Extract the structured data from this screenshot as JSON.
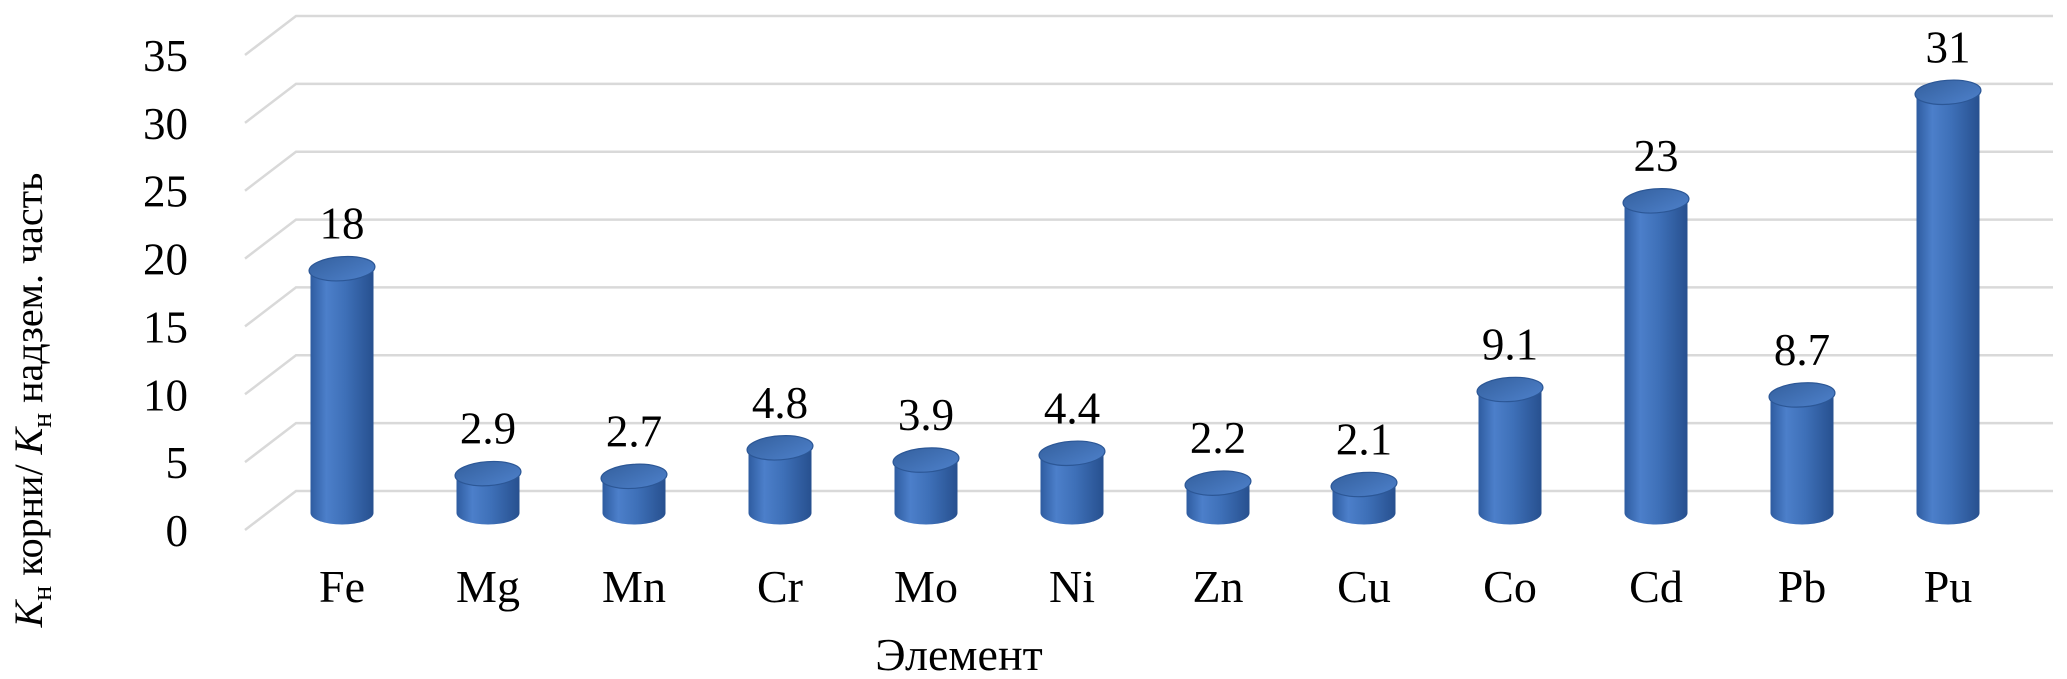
{
  "page": {
    "background": "#FFFFFF"
  },
  "chart_data": {
    "type": "bar",
    "subtype": "3d-cylinder",
    "title": "",
    "xlabel": "Элемент",
    "ylabel": "Кн корни/ Кн надзем. часть",
    "ylabel_rich": [
      {
        "text": "К",
        "style": "italic"
      },
      {
        "text": "н",
        "style": "sub"
      },
      {
        "text": " корни/ ",
        "style": "normal"
      },
      {
        "text": "К",
        "style": "italic"
      },
      {
        "text": "н",
        "style": "sub"
      },
      {
        "text": " надзем. часть",
        "style": "normal"
      }
    ],
    "categories": [
      "Fe",
      "Mg",
      "Mn",
      "Cr",
      "Mo",
      "Ni",
      "Zn",
      "Cu",
      "Co",
      "Cd",
      "Pb",
      "Pu"
    ],
    "values": [
      18,
      2.9,
      2.7,
      4.8,
      3.9,
      4.4,
      2.2,
      2.1,
      9.1,
      23,
      8.7,
      31
    ],
    "value_labels": [
      "18",
      "2.9",
      "2.7",
      "4.8",
      "3.9",
      "4.4",
      "2.2",
      "2.1",
      "9.1",
      "23",
      "8.7",
      "31"
    ],
    "yticks": [
      0,
      5,
      10,
      15,
      20,
      25,
      30,
      35
    ],
    "ylim": [
      0,
      35
    ],
    "grid": true,
    "legend": "none",
    "colors": {
      "bar_dark": "#27508F",
      "bar_edge": "#2E5CA0",
      "bar_light": "#4C7FCA",
      "bar_mid": "#3E70B8",
      "cap_fill_from": "#35619F",
      "cap_fill_to": "#4D80CA",
      "cap_edge": "#2C5796",
      "gridline": "#D9D9D9",
      "text": "#000000",
      "background": "#FFFFFF"
    }
  }
}
